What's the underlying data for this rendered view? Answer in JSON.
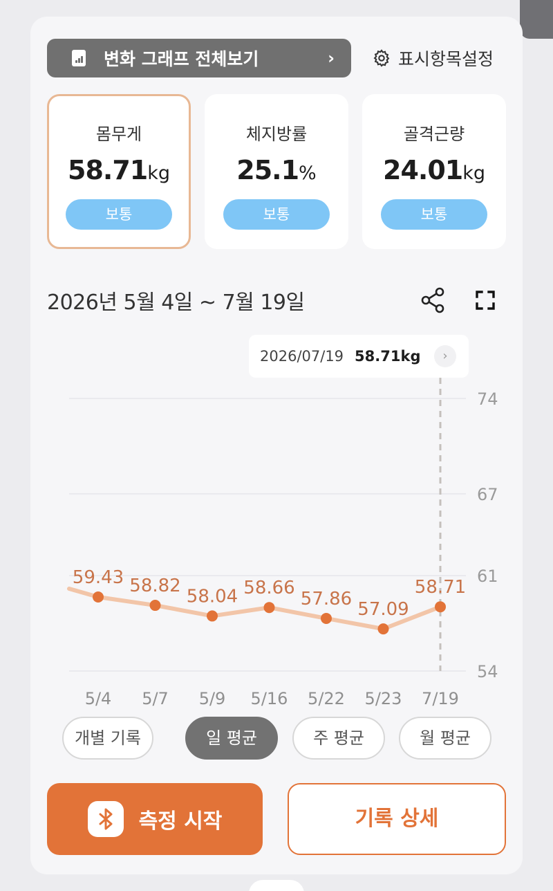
{
  "header": {
    "graph_all_label": "변화 그래프 전체보기",
    "graph_all_chevron": "›",
    "display_settings_label": "표시항목설정"
  },
  "metrics": [
    {
      "label": "몸무게",
      "value": "58.71",
      "unit": "kg",
      "badge": "보통",
      "selected": true
    },
    {
      "label": "체지방률",
      "value": "25.1",
      "unit": "%",
      "badge": "보통",
      "selected": false
    },
    {
      "label": "골격근량",
      "value": "24.01",
      "unit": "kg",
      "badge": "보통",
      "selected": false
    }
  ],
  "range_label": "2026년 5월 4일 ~ 7월 19일",
  "tooltip": {
    "date": "2026/07/19",
    "value": "58.71kg",
    "chevron": "›"
  },
  "colors": {
    "accent": "#e27338",
    "line": "#f2c5a8",
    "point_label": "#c8744a",
    "badge": "#7fc6f6",
    "selected_border": "#e8b894"
  },
  "chart_data": {
    "type": "line",
    "title": "",
    "xlabel": "",
    "ylabel": "",
    "categories": [
      "5/4",
      "5/7",
      "5/9",
      "5/16",
      "5/22",
      "5/23",
      "7/19"
    ],
    "series": [
      {
        "values": [
          59.43,
          58.82,
          58.04,
          58.66,
          57.86,
          57.09,
          58.71
        ]
      }
    ],
    "value_labels": [
      "59.43",
      "58.82",
      "58.04",
      "58.66",
      "57.86",
      "57.09",
      "58.71"
    ],
    "y_ticks": [
      "74",
      "67",
      "61",
      "54"
    ],
    "y_tick_values": [
      74,
      67,
      61,
      54
    ],
    "ylim": [
      54,
      74
    ],
    "y_axis_side": "right",
    "grid": true,
    "highlighted_category": "7/19"
  },
  "segments": [
    {
      "label": "개별 기록",
      "active": false
    },
    {
      "label": "일 평균",
      "active": true
    },
    {
      "label": "주 평균",
      "active": false
    },
    {
      "label": "월 평균",
      "active": false
    }
  ],
  "actions": {
    "start_label": "측정 시작",
    "start_icon": "bluetooth-icon",
    "detail_label": "기록 상세"
  }
}
